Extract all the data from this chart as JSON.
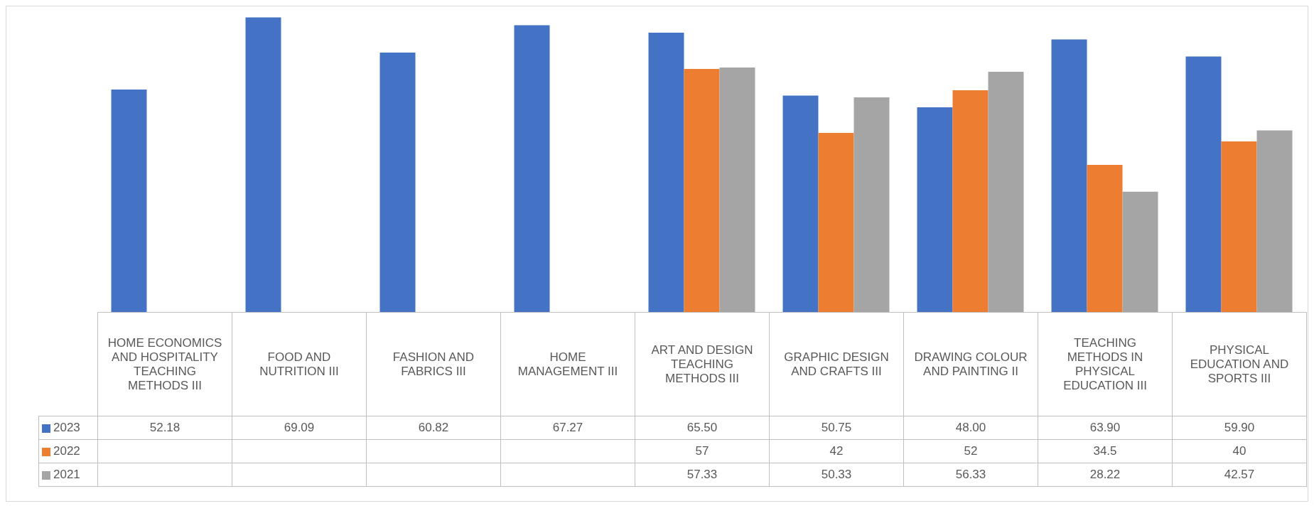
{
  "chart_data": {
    "type": "bar",
    "categories": [
      "HOME ECONOMICS AND HOSPITALITY TEACHING METHODS III",
      "FOOD AND NUTRITION III",
      "FASHION AND FABRICS III",
      "HOME MANAGEMENT III",
      "ART AND DESIGN TEACHING METHODS III",
      "GRAPHIC DESIGN AND CRAFTS III",
      "DRAWING COLOUR AND PAINTING II",
      "TEACHING METHODS IN PHYSICAL EDUCATION III",
      "PHYSICAL EDUCATION AND SPORTS III"
    ],
    "series": [
      {
        "name": "2023",
        "color": "#4472c4",
        "values": [
          52.18,
          69.09,
          60.82,
          67.27,
          65.5,
          50.75,
          48,
          63.9,
          59.9
        ],
        "value_labels": [
          "52.18",
          "69.09",
          "60.82",
          "67.27",
          "65.50",
          "50.75",
          "48.00",
          "63.90",
          "59.90"
        ]
      },
      {
        "name": "2022",
        "color": "#ed7d31",
        "values": [
          null,
          null,
          null,
          null,
          57,
          42,
          52,
          34.5,
          40
        ],
        "value_labels": [
          null,
          null,
          null,
          null,
          "57",
          "42",
          "52",
          "34.5",
          "40"
        ]
      },
      {
        "name": "2021",
        "color": "#a5a5a5",
        "values": [
          null,
          null,
          null,
          null,
          57.33,
          50.33,
          56.33,
          28.22,
          42.57
        ],
        "value_labels": [
          null,
          null,
          null,
          null,
          "57.33",
          "50.33",
          "56.33",
          "28.22",
          "42.57"
        ]
      }
    ],
    "legend": "bottom left"
  }
}
